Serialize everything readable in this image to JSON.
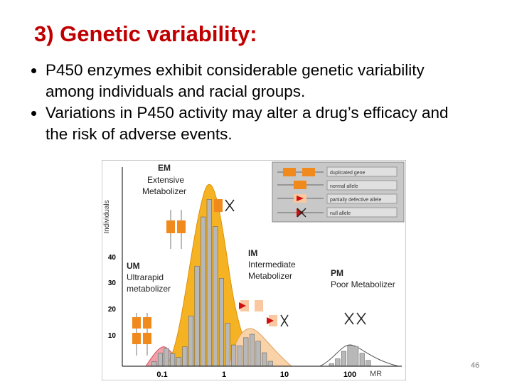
{
  "title": "3) Genetic variability:",
  "bullets": [
    "P450 enzymes exhibit considerable genetic variability among individuals and racial groups.",
    "Variations in P450 activity may alter a drug’s efficacy and the risk of adverse events."
  ],
  "figure": {
    "y_axis_label": "Individuals",
    "yticks": [
      "10",
      "20",
      "30",
      "40"
    ],
    "xticks": [
      "0.1",
      "1",
      "10",
      "100"
    ],
    "x_label": "MR",
    "groups": [
      {
        "abbr": "EM",
        "name_lines": [
          "Extensive",
          "Metabolizer"
        ]
      },
      {
        "abbr": "UM",
        "name_lines": [
          "Ultrarapid",
          "metabolizer"
        ]
      },
      {
        "abbr": "IM",
        "name_lines": [
          "Intermediate",
          "Metabolizer"
        ]
      },
      {
        "abbr": "PM",
        "name_lines": [
          "Poor Metabolizer"
        ]
      }
    ],
    "legend": [
      "duplicated gene",
      "normal allele",
      "partially defective allele",
      "null allele"
    ]
  },
  "page_number": "46"
}
